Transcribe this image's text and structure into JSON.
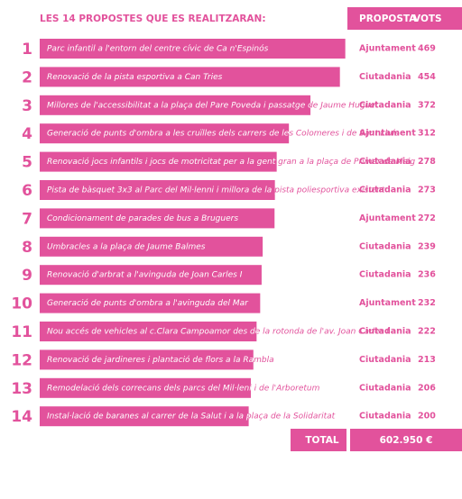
{
  "chart_data": {
    "type": "bar",
    "orientation": "horizontal",
    "title": "LES 14 PROPOSTES QUE ES REALITZARAN:",
    "color": "#e2529c",
    "header_proposer": "PROPOSTA",
    "header_votes": "VOTS",
    "ranks": [
      1,
      2,
      3,
      4,
      5,
      6,
      7,
      8,
      9,
      10,
      11,
      12,
      13,
      14
    ],
    "categories": [
      "Parc infantil a l'entorn del centre cívic de Ca n'Espinós",
      "Renovació de la pista esportiva a Can Tries",
      "Millores de l'accessibilitat a la plaça del Pare Poveda i passatge de Jaume Huguet",
      "Generació de punts d'ombra a les cruïlles dels carrers de les Colomeres i de Sant Lluís",
      "Renovació jocs infantils i jocs de motricitat per a la gent gran a la plaça de Primer de Maig",
      "Pista de bàsquet 3x3 al Parc del Mil·lenni i millora de la pista poliesportiva existent",
      "Condicionament de parades de bus a Bruguers",
      "Umbracles a la plaça de Jaume Balmes",
      "Renovació d'arbrat a l'avinguda de Joan Carles I",
      "Generació de punts d'ombra a l'avinguda del Mar",
      "Nou accés de vehicles al c.Clara Campoamor des de la rotonda de l'av. Joan Carles I",
      "Renovació de jardineres i plantació de flors a la Rambla",
      "Remodelació dels correcans dels parcs del Mil·leni i de l'Arboretum",
      "Instal·lació de baranes al carrer de la Salut i a la plaça de la Solidaritat"
    ],
    "proposers": [
      "Ajuntament",
      "Ciutadania",
      "Ciutadania",
      "Ajuntament",
      "Ciutadania",
      "Ciutadania",
      "Ajuntament",
      "Ciutadania",
      "Ciutadania",
      "Ajuntament",
      "Ciutadania",
      "Ciutadania",
      "Ciutadania",
      "Ciutadania"
    ],
    "values": [
      469,
      454,
      372,
      312,
      278,
      273,
      272,
      239,
      236,
      232,
      222,
      213,
      206,
      200
    ],
    "total_label": "TOTAL",
    "total_value": "602.950 €"
  }
}
